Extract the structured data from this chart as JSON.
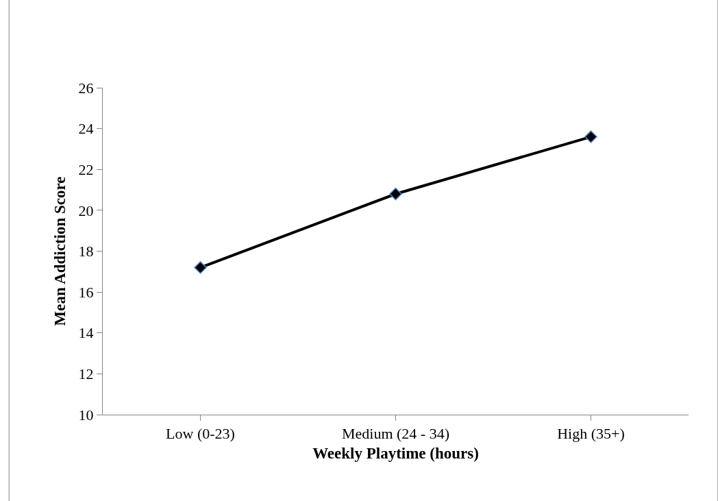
{
  "chart_data": {
    "type": "line",
    "categories": [
      "Low (0-23)",
      "Medium (24 - 34)",
      "High (35+)"
    ],
    "series": [
      {
        "color": "#000000",
        "values": [
          17.2,
          20.8,
          23.6
        ]
      }
    ],
    "xlabel": "Weekly Playtime (hours)",
    "ylabel": "Mean Addiction Score",
    "ylim": [
      10,
      26
    ],
    "yticks": [
      10,
      12,
      14,
      16,
      18,
      20,
      22,
      24,
      26
    ],
    "marker": "diamond",
    "line_style": "solid"
  }
}
